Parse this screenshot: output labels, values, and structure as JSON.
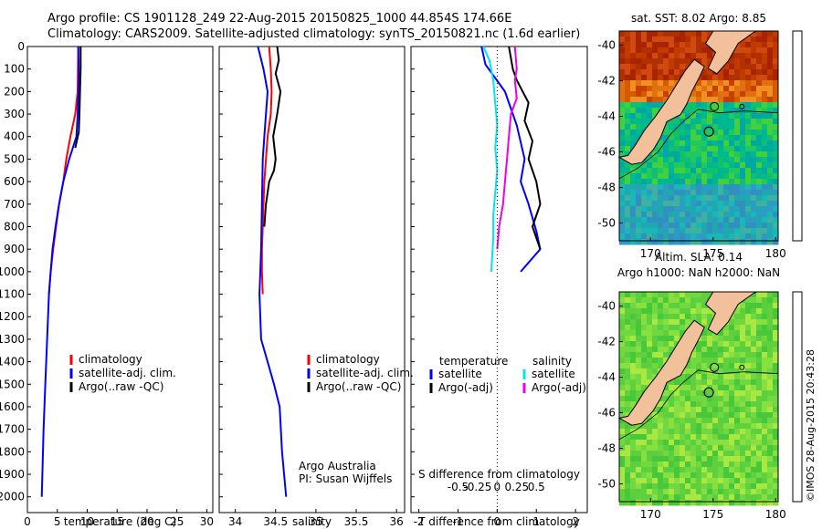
{
  "header": {
    "line1": "Argo profile: CS 1901128_249 22-Aug-2015 20150825_1000 44.854S 174.66E",
    "line2": "Climatology: CARS2009. Satellite-adjusted climatology: synTS_20150821.nc (1.6d earlier)"
  },
  "colors": {
    "climatology": "#ff0000",
    "satellite": "#0000ff",
    "argo": "#000000",
    "sal_satellite": "#00e5ee",
    "sal_argo": "#ee00ee"
  },
  "chart_data": [
    {
      "type": "line",
      "xlabel": "temperature (deg C)",
      "xlim": [
        0,
        31
      ],
      "xticks": [
        0,
        5,
        10,
        15,
        20,
        25,
        30
      ],
      "ylim": [
        0,
        2070
      ],
      "yticks": [
        0,
        100,
        200,
        300,
        400,
        500,
        600,
        700,
        800,
        900,
        1000,
        1100,
        1200,
        1300,
        1400,
        1500,
        1600,
        1700,
        1800,
        1900,
        2000
      ],
      "legend": [
        "climatology",
        "satellite-adj. clim.",
        "Argo(..raw -QC)"
      ],
      "series": [
        {
          "name": "climatology",
          "color": "#ff0000",
          "points": [
            [
              8.5,
              0
            ],
            [
              8.4,
              200
            ],
            [
              8.0,
              300
            ],
            [
              7.2,
              400
            ],
            [
              6.5,
              500
            ],
            [
              6.0,
              600
            ],
            [
              5.3,
              700
            ],
            [
              4.8,
              800
            ],
            [
              4.3,
              900
            ],
            [
              3.9,
              1000
            ],
            [
              3.6,
              1100
            ]
          ]
        },
        {
          "name": "satellite-adj. clim.",
          "color": "#0000ff",
          "points": [
            [
              8.5,
              0
            ],
            [
              8.6,
              150
            ],
            [
              8.4,
              300
            ],
            [
              8.2,
              400
            ],
            [
              7.0,
              500
            ],
            [
              6.0,
              600
            ],
            [
              5.3,
              700
            ],
            [
              4.7,
              800
            ],
            [
              4.2,
              900
            ],
            [
              3.9,
              1000
            ],
            [
              3.6,
              1100
            ],
            [
              3.3,
              1300
            ],
            [
              3.0,
              1500
            ],
            [
              2.7,
              1700
            ],
            [
              2.5,
              1900
            ],
            [
              2.4,
              2000
            ]
          ]
        },
        {
          "name": "Argo(..raw -QC)",
          "color": "#000000",
          "points": [
            [
              8.9,
              0
            ],
            [
              8.9,
              100
            ],
            [
              8.8,
              200
            ],
            [
              8.7,
              300
            ],
            [
              8.6,
              380
            ],
            [
              8.0,
              450
            ]
          ]
        }
      ]
    },
    {
      "type": "line",
      "xlabel": "salinity",
      "xlim": [
        33.8,
        36.1
      ],
      "xticks": [
        34,
        34.5,
        35,
        35.5,
        36
      ],
      "ylim": [
        0,
        2070
      ],
      "legend": [
        "climatology",
        "satellite-adj. clim.",
        "Argo(..raw -QC)"
      ],
      "annotation": [
        "Argo Australia",
        "PI: Susan Wijffels"
      ],
      "series": [
        {
          "name": "climatology",
          "color": "#ff0000",
          "points": [
            [
              34.42,
              0
            ],
            [
              34.44,
              100
            ],
            [
              34.45,
              200
            ],
            [
              34.44,
              300
            ],
            [
              34.4,
              400
            ],
            [
              34.38,
              500
            ],
            [
              34.36,
              600
            ],
            [
              34.35,
              700
            ],
            [
              34.34,
              800
            ],
            [
              34.33,
              900
            ],
            [
              34.33,
              1000
            ],
            [
              34.34,
              1100
            ]
          ]
        },
        {
          "name": "satellite-adj. clim.",
          "color": "#0000ff",
          "points": [
            [
              34.28,
              0
            ],
            [
              34.35,
              100
            ],
            [
              34.4,
              200
            ],
            [
              34.38,
              300
            ],
            [
              34.36,
              400
            ],
            [
              34.34,
              500
            ],
            [
              34.33,
              700
            ],
            [
              34.32,
              900
            ],
            [
              34.31,
              1000
            ],
            [
              34.3,
              1100
            ],
            [
              34.32,
              1300
            ],
            [
              34.4,
              1400
            ],
            [
              34.48,
              1500
            ],
            [
              34.55,
              1600
            ],
            [
              34.58,
              1800
            ],
            [
              34.63,
              2000
            ]
          ]
        },
        {
          "name": "Argo(..raw -QC)",
          "color": "#000000",
          "points": [
            [
              34.52,
              0
            ],
            [
              34.54,
              60
            ],
            [
              34.5,
              120
            ],
            [
              34.56,
              200
            ],
            [
              34.52,
              300
            ],
            [
              34.47,
              400
            ],
            [
              34.5,
              500
            ],
            [
              34.48,
              550
            ],
            [
              34.42,
              600
            ],
            [
              34.38,
              700
            ],
            [
              34.36,
              800
            ]
          ]
        }
      ]
    },
    {
      "type": "line",
      "xlabel": "T difference from climatology",
      "xlabel_top": "S difference from climatology",
      "xlim": [
        -2.2,
        2.3
      ],
      "xticks": [
        -2,
        -1,
        0,
        1,
        2
      ],
      "xticks_top": [
        "-0.5",
        "-0.25",
        "0",
        "0.25",
        "0.5"
      ],
      "ylim": [
        0,
        2070
      ],
      "legend_headers": [
        "temperature",
        "salinity"
      ],
      "legend": [
        "satellite",
        "Argo(-adj)",
        "satellite",
        "Argo(-adj)"
      ],
      "series": [
        {
          "name": "satellite",
          "color": "#0000ff",
          "points": [
            [
              -0.4,
              0
            ],
            [
              -0.3,
              80
            ],
            [
              0.2,
              200
            ],
            [
              0.5,
              350
            ],
            [
              0.7,
              500
            ],
            [
              0.6,
              600
            ],
            [
              0.8,
              700
            ],
            [
              1.0,
              820
            ],
            [
              1.1,
              900
            ],
            [
              0.6,
              1000
            ]
          ]
        },
        {
          "name": "Argo(-adj)",
          "color": "#000000",
          "points": [
            [
              0.3,
              0
            ],
            [
              0.4,
              100
            ],
            [
              0.5,
              150
            ],
            [
              0.8,
              250
            ],
            [
              0.7,
              330
            ],
            [
              0.9,
              420
            ],
            [
              0.8,
              500
            ],
            [
              1.0,
              600
            ],
            [
              1.1,
              700
            ],
            [
              0.9,
              800
            ],
            [
              1.1,
              900
            ]
          ]
        },
        {
          "name": "satellite",
          "color": "#00e5ee",
          "points": [
            [
              -0.35,
              0
            ],
            [
              -0.2,
              60
            ],
            [
              -0.1,
              150
            ],
            [
              -0.05,
              250
            ],
            [
              0,
              350
            ],
            [
              -0.05,
              450
            ],
            [
              0,
              550
            ],
            [
              -0.05,
              650
            ],
            [
              -0.1,
              750
            ],
            [
              -0.1,
              850
            ],
            [
              -0.15,
              1000
            ]
          ]
        },
        {
          "name": "Argo(-adj)",
          "color": "#ee00ee",
          "points": [
            [
              0.45,
              0
            ],
            [
              0.5,
              100
            ],
            [
              0.45,
              150
            ],
            [
              0.5,
              230
            ],
            [
              0.35,
              300
            ],
            [
              0.3,
              400
            ],
            [
              0.25,
              500
            ],
            [
              0.2,
              600
            ],
            [
              0.15,
              700
            ],
            [
              0.05,
              800
            ],
            [
              0,
              900
            ]
          ]
        }
      ]
    },
    {
      "type": "heatmap",
      "title": "sat. SST: 8.02 Argo: 8.85",
      "xticks": [
        170,
        175,
        180
      ],
      "yticks": [
        -40,
        -42,
        -44,
        -46,
        -48,
        -50
      ],
      "xlim": [
        167.5,
        180.2
      ],
      "ylim": [
        -51,
        -39.2
      ]
    },
    {
      "type": "heatmap",
      "title": "Altim. SLA: 0.14",
      "subtitle": "Argo h1000: NaN h2000: NaN",
      "xticks": [
        170,
        175,
        180
      ],
      "yticks": [
        -40,
        -42,
        -44,
        -46,
        -48,
        -50
      ],
      "xlim": [
        167.5,
        180.2
      ],
      "ylim": [
        -51,
        -39.2
      ]
    }
  ],
  "side_text": "©IMOS 28-Aug-2015 20:43:28"
}
